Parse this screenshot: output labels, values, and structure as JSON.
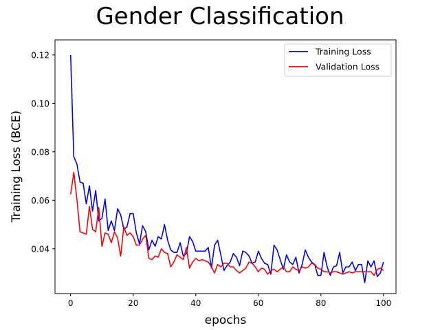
{
  "chart_data": {
    "type": "line",
    "title": "Gender Classification",
    "xlabel": "epochs",
    "ylabel": "Training Loss (BCE)",
    "xlim": [
      -5,
      104
    ],
    "ylim": [
      0.0215,
      0.1262
    ],
    "xticks": [
      0,
      20,
      40,
      60,
      80,
      100
    ],
    "yticks": [
      0.04,
      0.06,
      0.08,
      0.1,
      0.12
    ],
    "ytick_labels": [
      "0.04",
      "0.06",
      "0.08",
      "0.10",
      "0.12"
    ],
    "grid": false,
    "legend_position": "top-right",
    "series": [
      {
        "name": "Training Loss",
        "color": "#0000ff",
        "values": [
          0.12,
          0.078,
          0.075,
          0.0675,
          0.067,
          0.0585,
          0.066,
          0.0555,
          0.064,
          0.0515,
          0.0525,
          0.0605,
          0.0475,
          0.0515,
          0.0475,
          0.0565,
          0.054,
          0.048,
          0.049,
          0.0545,
          0.0545,
          0.0465,
          0.042,
          0.0495,
          0.047,
          0.0395,
          0.0435,
          0.041,
          0.045,
          0.044,
          0.05,
          0.0435,
          0.0395,
          0.0385,
          0.0385,
          0.0425,
          0.037,
          0.038,
          0.045,
          0.043,
          0.039,
          0.039,
          0.039,
          0.039,
          0.0405,
          0.032,
          0.0415,
          0.0435,
          0.0375,
          0.031,
          0.033,
          0.0345,
          0.038,
          0.0365,
          0.033,
          0.039,
          0.0385,
          0.037,
          0.034,
          0.0345,
          0.039,
          0.036,
          0.034,
          0.0335,
          0.0295,
          0.0415,
          0.0395,
          0.0355,
          0.0315,
          0.0375,
          0.0345,
          0.0335,
          0.0365,
          0.03,
          0.0335,
          0.0395,
          0.0365,
          0.0345,
          0.0335,
          0.029,
          0.029,
          0.0385,
          0.0325,
          0.029,
          0.0325,
          0.033,
          0.0385,
          0.03,
          0.0325,
          0.0325,
          0.0345,
          0.031,
          0.0335,
          0.0335,
          0.026,
          0.035,
          0.0325,
          0.035,
          0.0285,
          0.03,
          0.0345
        ]
      },
      {
        "name": "Validation Loss",
        "color": "#ff0000",
        "values": [
          0.0625,
          0.0715,
          0.0605,
          0.047,
          0.0465,
          0.046,
          0.0575,
          0.048,
          0.047,
          0.057,
          0.041,
          0.0465,
          0.046,
          0.0425,
          0.047,
          0.0445,
          0.037,
          0.049,
          0.0455,
          0.0465,
          0.045,
          0.0415,
          0.0415,
          0.044,
          0.0455,
          0.036,
          0.0355,
          0.037,
          0.0365,
          0.04,
          0.0385,
          0.038,
          0.0325,
          0.0345,
          0.0375,
          0.0365,
          0.0355,
          0.0405,
          0.032,
          0.0345,
          0.036,
          0.035,
          0.0355,
          0.035,
          0.0345,
          0.0325,
          0.03,
          0.0335,
          0.0325,
          0.034,
          0.034,
          0.0325,
          0.0325,
          0.031,
          0.03,
          0.031,
          0.032,
          0.0345,
          0.034,
          0.0325,
          0.0305,
          0.032,
          0.0315,
          0.0295,
          0.031,
          0.0315,
          0.0305,
          0.0315,
          0.0325,
          0.0305,
          0.0305,
          0.0325,
          0.0315,
          0.031,
          0.0325,
          0.032,
          0.0325,
          0.034,
          0.0335,
          0.032,
          0.0315,
          0.0305,
          0.0305,
          0.03,
          0.0305,
          0.0305,
          0.03,
          0.0295,
          0.03,
          0.0305,
          0.03,
          0.0305,
          0.0305,
          0.0305,
          0.0305,
          0.0305,
          0.0305,
          0.029,
          0.0315,
          0.032,
          0.031
        ]
      }
    ]
  }
}
